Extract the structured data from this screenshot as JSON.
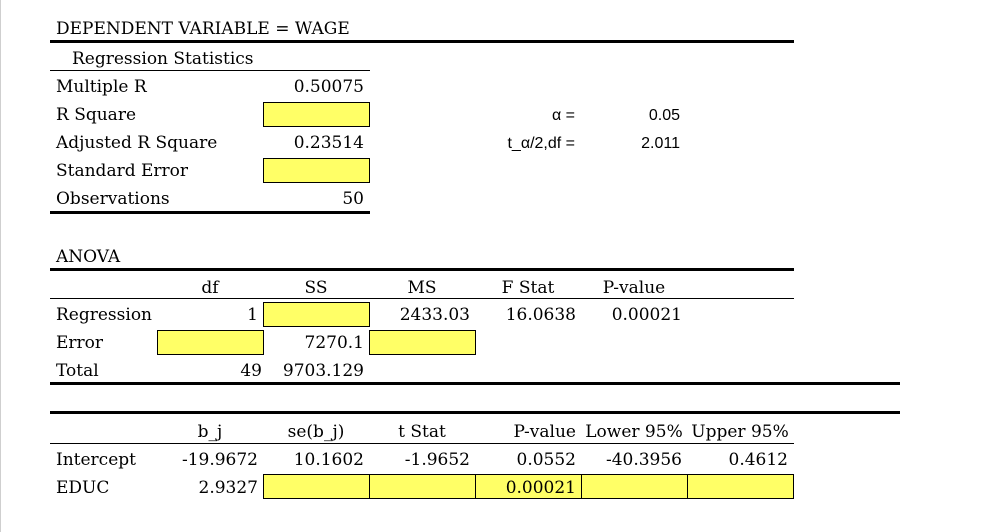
{
  "header": {
    "title": "DEPENDENT VARIABLE = WAGE"
  },
  "regression_stats": {
    "title": "Regression Statistics",
    "rows": [
      {
        "label": "Multiple R",
        "value": "0.50075"
      },
      {
        "label": "R Square",
        "value": ""
      },
      {
        "label": "Adjusted R Square",
        "value": "0.23514"
      },
      {
        "label": "Standard Error",
        "value": ""
      },
      {
        "label": "Observations",
        "value": "50"
      }
    ]
  },
  "params": {
    "alpha_label": "α =",
    "alpha_value": "0.05",
    "t_label": "t_α/2,df =",
    "t_value": "2.011"
  },
  "anova": {
    "title": "ANOVA",
    "headers": [
      "df",
      "SS",
      "MS",
      "F Stat",
      "P-value"
    ],
    "rows": [
      {
        "label": "Regression",
        "df": "1",
        "ss": "",
        "ms": "2433.03",
        "f": "16.0638",
        "p": "0.00021"
      },
      {
        "label": "Error",
        "df": "",
        "ss": "7270.1",
        "ms": ""
      },
      {
        "label": "Total",
        "df": "49",
        "ss": "9703.129"
      }
    ]
  },
  "coef": {
    "headers": [
      "b_j",
      "se(b_j)",
      "t Stat",
      "P-value",
      "Lower 95%",
      "Upper 95%"
    ],
    "rows": [
      {
        "label": "Intercept",
        "b": "-19.9672",
        "se": "10.1602",
        "t": "-1.9652",
        "p": "0.0552",
        "lower": "-40.3956",
        "upper": "0.4612"
      },
      {
        "label": "EDUC",
        "b": "2.9327",
        "se": "",
        "t": "",
        "p": "0.00021",
        "lower": "",
        "upper": ""
      }
    ]
  },
  "colors": {
    "highlight": "#ffff66"
  }
}
